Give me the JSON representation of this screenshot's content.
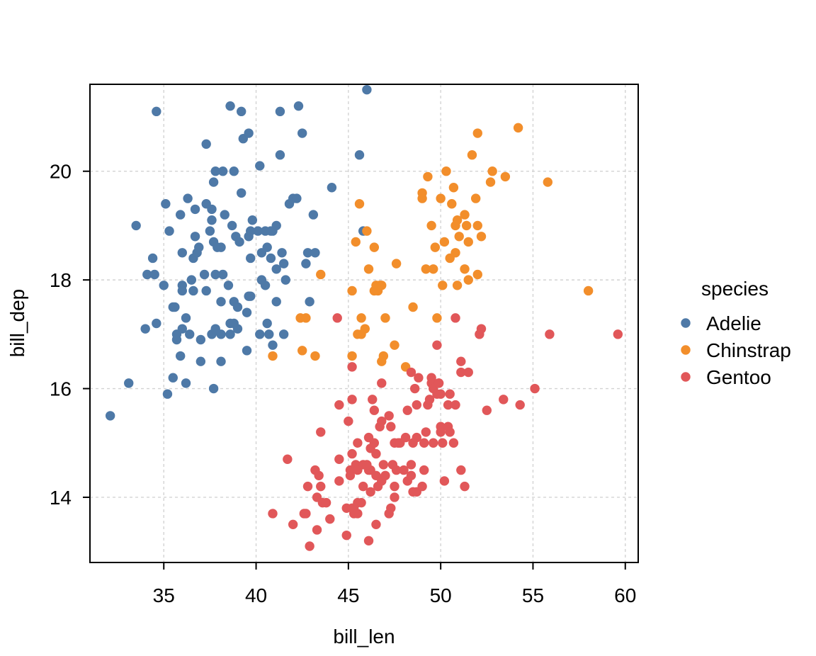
{
  "chart_data": {
    "type": "scatter",
    "title": "",
    "xlabel": "bill_len",
    "ylabel": "bill_dep",
    "xlim": [
      31,
      60.7
    ],
    "ylim": [
      12.8,
      21.6
    ],
    "x_ticks": [
      35,
      40,
      45,
      50,
      55,
      60
    ],
    "y_ticks": [
      14,
      16,
      18,
      20
    ],
    "grid": true,
    "legend": {
      "title": "species",
      "placement": "right"
    },
    "series": [
      {
        "name": "Adelie",
        "color": "#4e79a7",
        "points": [
          [
            32.1,
            15.5
          ],
          [
            33.1,
            16.1
          ],
          [
            33.5,
            19.0
          ],
          [
            34.0,
            17.1
          ],
          [
            34.1,
            18.1
          ],
          [
            34.4,
            18.4
          ],
          [
            34.5,
            18.1
          ],
          [
            34.6,
            21.1
          ],
          [
            34.6,
            17.2
          ],
          [
            35.0,
            17.9
          ],
          [
            35.1,
            19.4
          ],
          [
            35.2,
            15.9
          ],
          [
            35.3,
            18.9
          ],
          [
            35.5,
            16.2
          ],
          [
            35.5,
            17.5
          ],
          [
            35.6,
            17.5
          ],
          [
            35.7,
            16.9
          ],
          [
            35.7,
            17.0
          ],
          [
            35.9,
            19.2
          ],
          [
            35.9,
            16.6
          ],
          [
            36.0,
            17.9
          ],
          [
            36.0,
            18.5
          ],
          [
            36.0,
            17.1
          ],
          [
            36.0,
            17.8
          ],
          [
            36.2,
            17.3
          ],
          [
            36.2,
            16.1
          ],
          [
            36.3,
            19.5
          ],
          [
            36.4,
            17.0
          ],
          [
            36.5,
            18.0
          ],
          [
            36.6,
            17.8
          ],
          [
            36.6,
            18.4
          ],
          [
            36.7,
            18.8
          ],
          [
            36.7,
            19.3
          ],
          [
            36.8,
            18.5
          ],
          [
            36.9,
            18.6
          ],
          [
            37.0,
            16.9
          ],
          [
            37.0,
            16.5
          ],
          [
            37.2,
            18.1
          ],
          [
            37.3,
            19.4
          ],
          [
            37.3,
            20.5
          ],
          [
            37.3,
            17.8
          ],
          [
            37.5,
            18.9
          ],
          [
            37.6,
            17.0
          ],
          [
            37.6,
            19.3
          ],
          [
            37.6,
            19.1
          ],
          [
            37.7,
            18.7
          ],
          [
            37.7,
            16.0
          ],
          [
            37.7,
            19.8
          ],
          [
            37.8,
            17.1
          ],
          [
            37.8,
            18.1
          ],
          [
            37.8,
            20.0
          ],
          [
            37.9,
            18.6
          ],
          [
            38.1,
            18.6
          ],
          [
            38.1,
            16.5
          ],
          [
            38.1,
            17.6
          ],
          [
            38.1,
            17.0
          ],
          [
            38.2,
            18.1
          ],
          [
            38.2,
            20.0
          ],
          [
            38.3,
            19.2
          ],
          [
            38.5,
            17.9
          ],
          [
            38.6,
            21.2
          ],
          [
            38.6,
            17.2
          ],
          [
            38.6,
            17.0
          ],
          [
            38.7,
            19.0
          ],
          [
            38.8,
            17.2
          ],
          [
            38.8,
            20.0
          ],
          [
            38.8,
            17.6
          ],
          [
            38.9,
            18.8
          ],
          [
            39.0,
            17.1
          ],
          [
            39.0,
            17.5
          ],
          [
            39.1,
            18.7
          ],
          [
            39.2,
            19.6
          ],
          [
            39.2,
            21.1
          ],
          [
            39.3,
            20.6
          ],
          [
            39.5,
            16.7
          ],
          [
            39.5,
            17.4
          ],
          [
            39.6,
            17.7
          ],
          [
            39.6,
            20.7
          ],
          [
            39.6,
            18.8
          ],
          [
            39.7,
            18.4
          ],
          [
            39.7,
            17.7
          ],
          [
            39.7,
            18.9
          ],
          [
            39.8,
            19.1
          ],
          [
            40.1,
            18.9
          ],
          [
            40.2,
            17.0
          ],
          [
            40.2,
            20.1
          ],
          [
            40.3,
            18.0
          ],
          [
            40.3,
            18.5
          ],
          [
            40.5,
            17.9
          ],
          [
            40.5,
            18.9
          ],
          [
            40.6,
            18.6
          ],
          [
            40.6,
            17.2
          ],
          [
            40.7,
            17.0
          ],
          [
            40.8,
            18.4
          ],
          [
            40.8,
            18.9
          ],
          [
            40.9,
            16.8
          ],
          [
            40.9,
            18.9
          ],
          [
            41.1,
            17.6
          ],
          [
            41.1,
            18.2
          ],
          [
            41.1,
            19.0
          ],
          [
            41.3,
            20.3
          ],
          [
            41.3,
            21.1
          ],
          [
            41.4,
            18.5
          ],
          [
            41.5,
            18.3
          ],
          [
            41.5,
            17.0
          ],
          [
            41.6,
            18.0
          ],
          [
            41.8,
            19.4
          ],
          [
            42.0,
            19.5
          ],
          [
            42.2,
            19.5
          ],
          [
            42.3,
            21.2
          ],
          [
            42.5,
            20.7
          ],
          [
            42.7,
            18.3
          ],
          [
            42.8,
            18.5
          ],
          [
            42.9,
            17.6
          ],
          [
            43.1,
            19.2
          ],
          [
            43.2,
            18.5
          ],
          [
            44.1,
            19.7
          ],
          [
            45.6,
            20.3
          ],
          [
            45.8,
            18.9
          ],
          [
            46.0,
            21.5
          ]
        ]
      },
      {
        "name": "Chinstrap",
        "color": "#f28e2b",
        "points": [
          [
            40.9,
            16.6
          ],
          [
            42.4,
            17.3
          ],
          [
            42.5,
            16.7
          ],
          [
            42.7,
            17.3
          ],
          [
            43.2,
            16.6
          ],
          [
            43.5,
            18.1
          ],
          [
            45.2,
            17.8
          ],
          [
            45.2,
            16.6
          ],
          [
            45.4,
            18.7
          ],
          [
            45.5,
            17.0
          ],
          [
            45.6,
            19.4
          ],
          [
            45.7,
            17.0
          ],
          [
            45.7,
            17.3
          ],
          [
            45.9,
            17.1
          ],
          [
            46.0,
            18.9
          ],
          [
            46.1,
            18.2
          ],
          [
            46.4,
            17.8
          ],
          [
            46.4,
            18.6
          ],
          [
            46.5,
            17.9
          ],
          [
            46.6,
            17.8
          ],
          [
            46.7,
            17.9
          ],
          [
            46.8,
            16.5
          ],
          [
            46.9,
            16.6
          ],
          [
            47.0,
            17.3
          ],
          [
            47.5,
            16.8
          ],
          [
            47.6,
            18.3
          ],
          [
            48.1,
            16.4
          ],
          [
            48.5,
            17.5
          ],
          [
            49.0,
            19.5
          ],
          [
            49.2,
            18.2
          ],
          [
            49.6,
            18.2
          ],
          [
            49.7,
            18.6
          ],
          [
            49.8,
            17.3
          ],
          [
            50.0,
            19.5
          ],
          [
            50.1,
            17.9
          ],
          [
            50.2,
            18.7
          ],
          [
            50.3,
            20.0
          ],
          [
            50.5,
            18.4
          ],
          [
            50.6,
            19.4
          ],
          [
            50.7,
            19.7
          ],
          [
            50.8,
            19.0
          ],
          [
            50.8,
            18.5
          ],
          [
            50.9,
            17.9
          ],
          [
            51.0,
            18.8
          ],
          [
            51.3,
            19.2
          ],
          [
            51.3,
            18.2
          ],
          [
            51.4,
            19.0
          ],
          [
            51.5,
            18.7
          ],
          [
            51.7,
            20.3
          ],
          [
            51.9,
            19.5
          ],
          [
            52.0,
            18.1
          ],
          [
            52.0,
            20.7
          ],
          [
            52.0,
            19.0
          ],
          [
            52.2,
            18.8
          ],
          [
            52.7,
            19.8
          ],
          [
            52.8,
            20.0
          ],
          [
            53.5,
            19.9
          ],
          [
            54.2,
            20.8
          ],
          [
            55.8,
            19.8
          ],
          [
            58.0,
            17.8
          ],
          [
            49.0,
            19.6
          ],
          [
            49.5,
            19.0
          ],
          [
            50.9,
            19.1
          ],
          [
            51.5,
            18.0
          ],
          [
            46.8,
            17.9
          ],
          [
            49.3,
            19.9
          ]
        ]
      },
      {
        "name": "Gentoo",
        "color": "#e15759",
        "points": [
          [
            40.9,
            13.7
          ],
          [
            41.7,
            14.7
          ],
          [
            42.0,
            13.5
          ],
          [
            42.6,
            13.7
          ],
          [
            42.7,
            13.7
          ],
          [
            42.8,
            14.2
          ],
          [
            42.9,
            13.1
          ],
          [
            43.2,
            14.5
          ],
          [
            43.3,
            13.4
          ],
          [
            43.3,
            14.0
          ],
          [
            43.4,
            14.4
          ],
          [
            43.5,
            14.2
          ],
          [
            43.5,
            15.2
          ],
          [
            43.6,
            13.9
          ],
          [
            43.8,
            13.9
          ],
          [
            44.0,
            13.6
          ],
          [
            44.4,
            17.3
          ],
          [
            44.5,
            14.3
          ],
          [
            44.5,
            14.7
          ],
          [
            44.5,
            15.7
          ],
          [
            44.9,
            13.3
          ],
          [
            44.9,
            13.8
          ],
          [
            45.0,
            15.4
          ],
          [
            45.1,
            14.5
          ],
          [
            45.1,
            14.4
          ],
          [
            45.2,
            13.8
          ],
          [
            45.2,
            14.8
          ],
          [
            45.2,
            15.8
          ],
          [
            45.2,
            16.4
          ],
          [
            45.3,
            13.7
          ],
          [
            45.3,
            13.8
          ],
          [
            45.4,
            14.6
          ],
          [
            45.5,
            13.7
          ],
          [
            45.5,
            13.9
          ],
          [
            45.5,
            14.5
          ],
          [
            45.5,
            15.0
          ],
          [
            45.7,
            13.9
          ],
          [
            45.8,
            14.2
          ],
          [
            45.8,
            14.6
          ],
          [
            46.1,
            13.2
          ],
          [
            46.1,
            15.1
          ],
          [
            46.1,
            14.5
          ],
          [
            46.2,
            14.1
          ],
          [
            46.2,
            14.5
          ],
          [
            46.2,
            14.9
          ],
          [
            46.3,
            15.8
          ],
          [
            46.4,
            15.0
          ],
          [
            46.4,
            15.6
          ],
          [
            46.5,
            13.5
          ],
          [
            46.5,
            14.4
          ],
          [
            46.5,
            14.8
          ],
          [
            46.6,
            14.2
          ],
          [
            46.7,
            15.3
          ],
          [
            46.8,
            14.3
          ],
          [
            46.8,
            15.4
          ],
          [
            46.8,
            16.1
          ],
          [
            46.9,
            14.6
          ],
          [
            47.0,
            14.4
          ],
          [
            47.2,
            13.7
          ],
          [
            47.2,
            15.5
          ],
          [
            47.3,
            13.8
          ],
          [
            47.4,
            14.6
          ],
          [
            47.5,
            14.0
          ],
          [
            47.5,
            14.2
          ],
          [
            47.5,
            15.0
          ],
          [
            47.6,
            14.5
          ],
          [
            47.7,
            15.0
          ],
          [
            47.8,
            15.0
          ],
          [
            48.1,
            15.1
          ],
          [
            48.2,
            14.3
          ],
          [
            48.2,
            15.6
          ],
          [
            48.4,
            14.4
          ],
          [
            48.4,
            14.6
          ],
          [
            48.4,
            16.3
          ],
          [
            48.5,
            14.1
          ],
          [
            48.5,
            15.0
          ],
          [
            48.6,
            16.0
          ],
          [
            48.7,
            14.1
          ],
          [
            48.7,
            15.1
          ],
          [
            48.7,
            15.7
          ],
          [
            48.8,
            16.2
          ],
          [
            49.0,
            14.2
          ],
          [
            49.1,
            14.5
          ],
          [
            49.1,
            15.0
          ],
          [
            49.2,
            15.2
          ],
          [
            49.3,
            15.7
          ],
          [
            49.4,
            15.8
          ],
          [
            49.5,
            16.1
          ],
          [
            49.5,
            16.2
          ],
          [
            49.6,
            15.0
          ],
          [
            49.6,
            16.0
          ],
          [
            49.8,
            15.9
          ],
          [
            49.8,
            16.8
          ],
          [
            49.9,
            16.1
          ],
          [
            50.0,
            15.2
          ],
          [
            50.0,
            15.3
          ],
          [
            50.0,
            15.9
          ],
          [
            50.1,
            15.0
          ],
          [
            50.2,
            14.3
          ],
          [
            50.4,
            15.3
          ],
          [
            50.4,
            15.7
          ],
          [
            50.5,
            15.2
          ],
          [
            50.5,
            15.9
          ],
          [
            50.7,
            15.0
          ],
          [
            50.8,
            15.7
          ],
          [
            50.8,
            17.3
          ],
          [
            51.1,
            14.5
          ],
          [
            51.1,
            16.3
          ],
          [
            51.1,
            16.5
          ],
          [
            51.3,
            14.2
          ],
          [
            51.5,
            16.3
          ],
          [
            52.1,
            17.0
          ],
          [
            52.2,
            17.1
          ],
          [
            52.5,
            15.6
          ],
          [
            53.4,
            15.8
          ],
          [
            54.3,
            15.7
          ],
          [
            55.1,
            16.0
          ],
          [
            55.9,
            17.0
          ],
          [
            59.6,
            17.0
          ],
          [
            46.0,
            14.6
          ],
          [
            47.3,
            15.3
          ],
          [
            48.0,
            14.5
          ],
          [
            49.9,
            16.1
          ]
        ]
      }
    ]
  }
}
